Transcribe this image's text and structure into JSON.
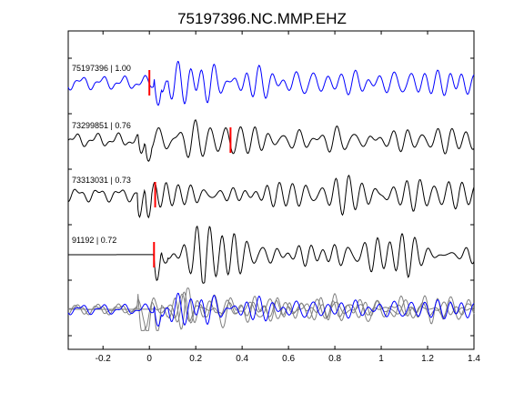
{
  "chart_data": {
    "type": "line",
    "title": "75197396.NC.MMP.EHZ",
    "xlabel": "",
    "ylabel": "",
    "xlim": [
      -0.35,
      1.4
    ],
    "xticks": [
      "-0.2",
      "0",
      "0.2",
      "0.4",
      "0.6",
      "0.8",
      "1",
      "1.2",
      "1.4"
    ],
    "xtick_values": [
      -0.2,
      0,
      0.2,
      0.4,
      0.6,
      0.8,
      1.0,
      1.2,
      1.4
    ],
    "grid": false,
    "legend": "none",
    "colors": {
      "reference": "#0000ff",
      "trace": "#000000",
      "overlay": "#808080",
      "pick": "#ff0000"
    },
    "traces": [
      {
        "name": "75197396 | 1.00",
        "event": "75197396",
        "cc": "1.00",
        "row": 0,
        "color": "#0000ff",
        "onset": 0.02,
        "pick_time": 0.0,
        "pre_noise": 0.35,
        "seed": 3
      },
      {
        "name": "73299851 | 0.76",
        "event": "73299851",
        "cc": "0.76",
        "row": 1,
        "color": "#000000",
        "onset": -0.05,
        "pick_time": 0.35,
        "pre_noise": 0.45,
        "seed": 11
      },
      {
        "name": "73313031 | 0.73",
        "event": "73313031",
        "cc": "0.73",
        "row": 2,
        "color": "#000000",
        "onset": -0.05,
        "pick_time": 0.025,
        "pre_noise": 0.4,
        "seed": 23
      },
      {
        "name": "91192 | 0.72",
        "event": "91192",
        "cc": "0.72",
        "row": 3,
        "color": "#000000",
        "onset": 0.02,
        "pick_time": 0.02,
        "pre_noise": 0.0,
        "seed": 37
      }
    ],
    "stack": {
      "row": 4,
      "overlay_color": "#808080",
      "reference_color": "#0000ff"
    }
  }
}
